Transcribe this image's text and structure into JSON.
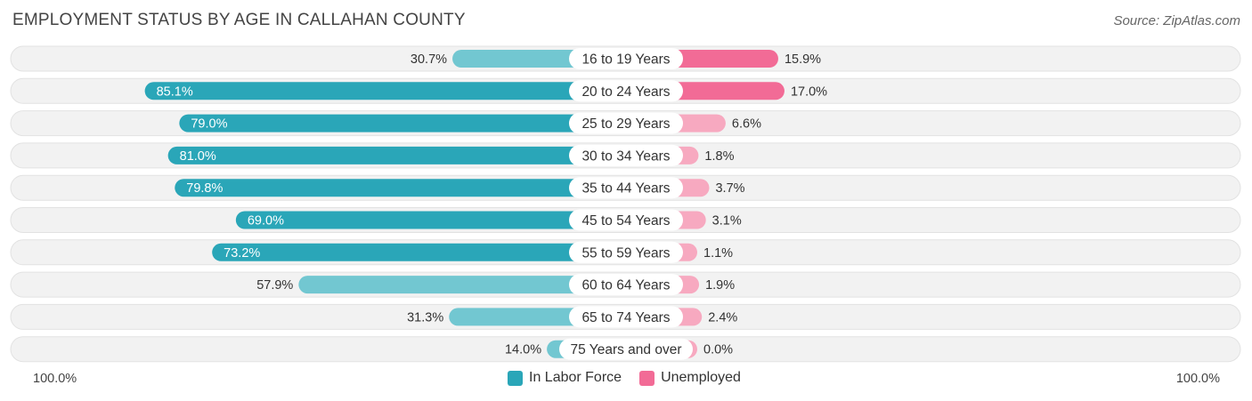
{
  "header": {
    "title": "EMPLOYMENT STATUS BY AGE IN CALLAHAN COUNTY",
    "source": "Source: ZipAtlas.com"
  },
  "colors": {
    "labor_dark": "#2aa6b8",
    "labor_light": "#72c7d1",
    "unemp_dark": "#f26b96",
    "unemp_light": "#f7a9c0",
    "row_bg": "#f2f2f2",
    "row_border": "#e2e2e2"
  },
  "axis": {
    "left_label": "100.0%",
    "right_label": "100.0%"
  },
  "legend": [
    {
      "label": "In Labor Force",
      "color": "#2aa6b8"
    },
    {
      "label": "Unemployed",
      "color": "#f26b96"
    }
  ],
  "chart_data": {
    "type": "bar",
    "orientation": "horizontal-diverging",
    "title": "EMPLOYMENT STATUS BY AGE IN CALLAHAN COUNTY",
    "categories": [
      "16 to 19 Years",
      "20 to 24 Years",
      "25 to 29 Years",
      "30 to 34 Years",
      "35 to 44 Years",
      "45 to 54 Years",
      "55 to 59 Years",
      "60 to 64 Years",
      "65 to 74 Years",
      "75 Years and over"
    ],
    "series": [
      {
        "name": "In Labor Force",
        "side": "left",
        "values": [
          30.7,
          85.1,
          79.0,
          81.0,
          79.8,
          69.0,
          73.2,
          57.9,
          31.3,
          14.0
        ],
        "labels": [
          "30.7%",
          "85.1%",
          "79.0%",
          "81.0%",
          "79.8%",
          "69.0%",
          "73.2%",
          "57.9%",
          "31.3%",
          "14.0%"
        ]
      },
      {
        "name": "Unemployed",
        "side": "right",
        "values": [
          15.9,
          17.0,
          6.6,
          1.8,
          3.7,
          3.1,
          1.1,
          1.9,
          2.4,
          0.0
        ],
        "labels": [
          "15.9%",
          "17.0%",
          "6.6%",
          "1.8%",
          "3.7%",
          "3.1%",
          "1.1%",
          "1.9%",
          "2.4%",
          "0.0%"
        ]
      }
    ],
    "xlim": [
      -100,
      100
    ],
    "legend_position": "bottom-center"
  }
}
